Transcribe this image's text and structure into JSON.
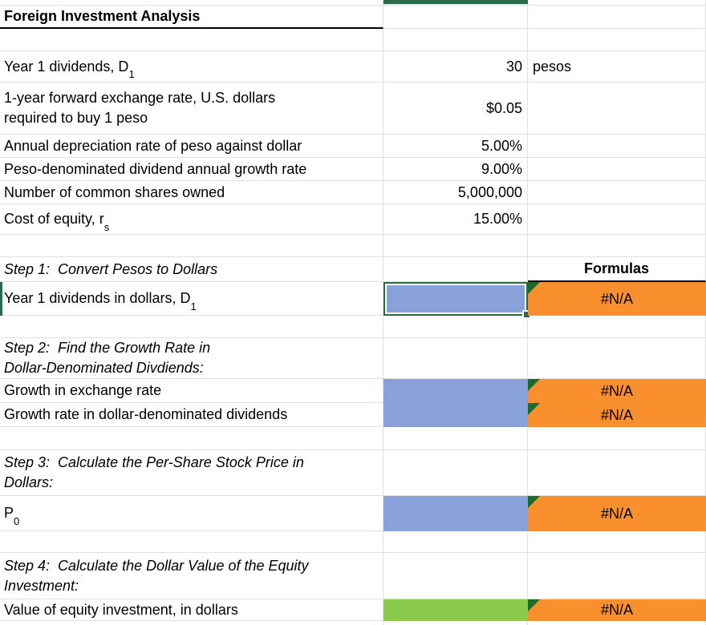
{
  "sheet": {
    "title": "Foreign Investment Analysis",
    "inputs": {
      "year1_dividends": {
        "label_main": "Year 1 dividends, D",
        "label_sub": "1",
        "value": "30",
        "unit": "pesos"
      },
      "forward_rate": {
        "label": "1-year forward exchange rate, U.S. dollars\nrequired to buy 1 peso",
        "value": "$0.05"
      },
      "depreciation_rate": {
        "label": "Annual depreciation rate of peso against dollar",
        "value": "5.00%"
      },
      "dividend_growth": {
        "label": "Peso-denominated dividend annual growth rate",
        "value": "9.00%"
      },
      "shares_owned": {
        "label": "Number of common shares owned",
        "value": "5,000,000"
      },
      "cost_of_equity": {
        "label_main": "Cost of equity, r",
        "label_sub": "s",
        "value": "15.00%"
      }
    },
    "formulas_header": "Formulas",
    "steps": {
      "step1": {
        "heading": "Step 1:  Convert Pesos to Dollars",
        "row": {
          "label_main": "Year 1 dividends in dollars, D",
          "label_sub": "1",
          "result": "#N/A"
        }
      },
      "step2": {
        "heading": "Step 2:  Find the Growth Rate in\nDollar-Denominated Divdiends:",
        "rows": [
          {
            "label": "Growth in exchange rate",
            "result": "#N/A"
          },
          {
            "label": "Growth rate in dollar-denominated dividends",
            "result": "#N/A"
          }
        ]
      },
      "step3": {
        "heading": "Step 3:  Calculate the Per-Share Stock Price in\nDollars:",
        "row": {
          "label_main": "P",
          "label_sub": "0",
          "result": "#N/A"
        }
      },
      "step4": {
        "heading": "Step 4:  Calculate the Dollar Value of the Equity\nInvestment:",
        "row": {
          "label": "Value of equity investment, in dollars",
          "result": "#N/A"
        }
      }
    }
  },
  "colors": {
    "input_cell_blue": "#88a1d8",
    "result_cell_orange": "#f9902d",
    "result_cell_green": "#8bc94a",
    "selection_green": "#286946",
    "corner_triangle_green": "#1d6928",
    "gridline_gray": "#e0e0e0"
  }
}
